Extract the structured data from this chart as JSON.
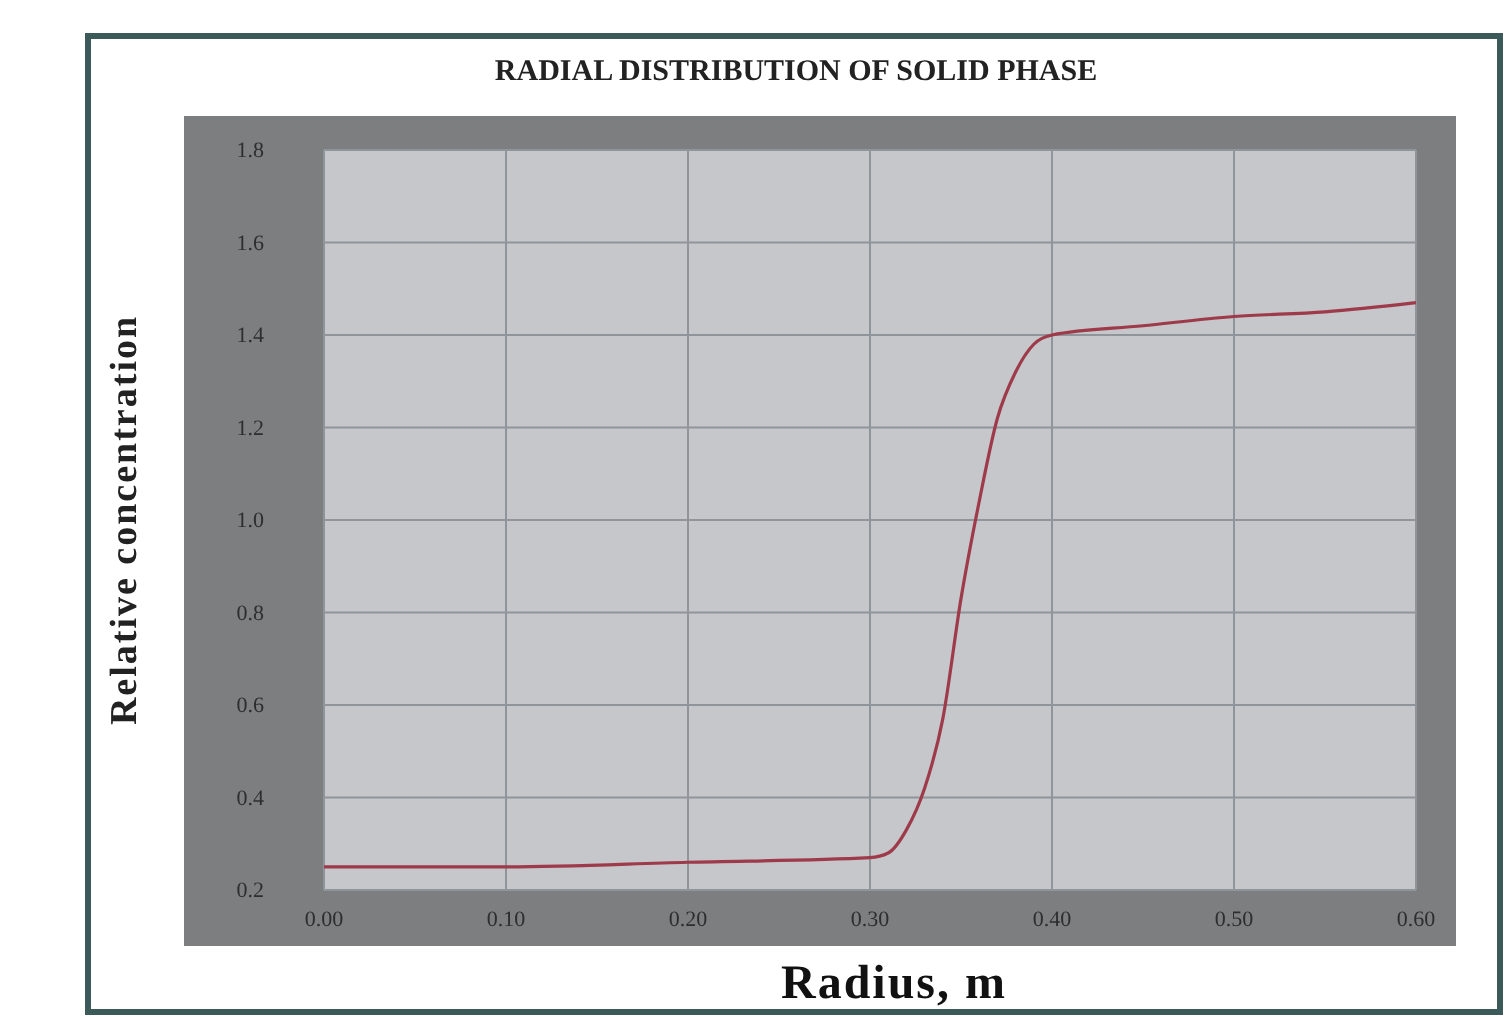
{
  "chart_data": {
    "type": "line",
    "title": "RADIAL DISTRIBUTION OF SOLID PHASE",
    "xlabel": "Radius, m",
    "ylabel": "Relative concentration",
    "x": [
      0,
      0.1,
      0.2,
      0.3,
      0.31,
      0.32,
      0.33,
      0.34,
      0.35,
      0.36,
      0.37,
      0.38,
      0.39,
      0.4,
      0.45,
      0.5,
      0.55,
      0.6
    ],
    "series": [
      {
        "color": "#9e3a4a",
        "values": [
          0.25,
          0.25,
          0.26,
          0.27,
          0.28,
          0.33,
          0.42,
          0.57,
          0.83,
          1.04,
          1.22,
          1.32,
          1.38,
          1.4,
          1.42,
          1.44,
          1.45,
          1.47
        ]
      }
    ],
    "xlim": [
      0,
      0.6
    ],
    "xticks": [
      {
        "value": 0,
        "label": "0.00"
      },
      {
        "value": 0.1,
        "label": "0.10"
      },
      {
        "value": 0.2,
        "label": "0.20"
      },
      {
        "value": 0.3,
        "label": "0.30"
      },
      {
        "value": 0.4,
        "label": "0.40"
      },
      {
        "value": 0.5,
        "label": "0.50"
      },
      {
        "value": 0.6,
        "label": "0.60"
      }
    ],
    "ylim": [
      0.2,
      1.8
    ],
    "yticks": [
      {
        "value": 0.2,
        "label": "0.2"
      },
      {
        "value": 0.4,
        "label": "0.4"
      },
      {
        "value": 0.6,
        "label": "0.6"
      },
      {
        "value": 0.8,
        "label": "0.8"
      },
      {
        "value": 1.0,
        "label": "1.0"
      },
      {
        "value": 1.2,
        "label": "1.2"
      },
      {
        "value": 1.4,
        "label": "1.4"
      },
      {
        "value": 1.6,
        "label": "1.6"
      },
      {
        "value": 1.8,
        "label": "1.8"
      }
    ],
    "grid": true,
    "line_style": "solid",
    "marker": "none"
  }
}
